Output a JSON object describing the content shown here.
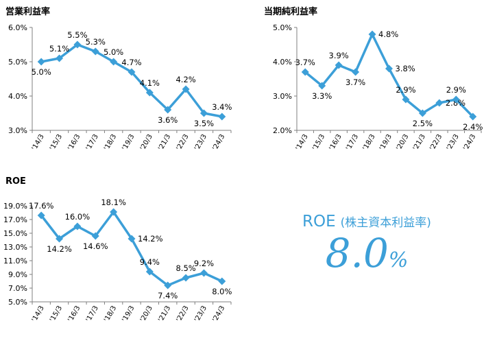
{
  "chart_data": [
    {
      "type": "line",
      "title": "営業利益率",
      "categories": [
        "'14/3",
        "'15/3",
        "'16/3",
        "'17/3",
        "'18/3",
        "'19/3",
        "'20/3",
        "'21/3",
        "'22/3",
        "'23/3",
        "'24/3"
      ],
      "values": [
        5.0,
        5.1,
        5.5,
        5.3,
        5.0,
        4.7,
        4.1,
        3.6,
        4.2,
        3.5,
        3.4
      ],
      "data_labels": [
        "5.0%",
        "5.1%",
        "5.5%",
        "5.3%",
        "5.0%",
        "4.7%",
        "4.1%",
        "3.6%",
        "4.2%",
        "3.5%",
        "3.4%"
      ],
      "label_pos": [
        "below",
        "above",
        "above",
        "above",
        "above",
        "above",
        "above",
        "below",
        "above",
        "below",
        "above"
      ],
      "ylim": [
        3.0,
        6.0
      ],
      "yticks": [
        3.0,
        4.0,
        5.0,
        6.0
      ],
      "ytick_labels": [
        "3.0%",
        "4.0%",
        "5.0%",
        "6.0%"
      ],
      "xlabel": "",
      "ylabel": "",
      "grid": false,
      "color": "#3c9fd8"
    },
    {
      "type": "line",
      "title": "当期純利益率",
      "categories": [
        "'14/3",
        "'15/3",
        "'16/3",
        "'17/3",
        "'18/3",
        "'19/3",
        "'20/3",
        "'21/3",
        "'22/3",
        "'23/3",
        "'24/3"
      ],
      "values": [
        3.7,
        3.3,
        3.9,
        3.7,
        4.8,
        3.8,
        2.9,
        2.5,
        2.8,
        2.9,
        2.4
      ],
      "data_labels": [
        "3.7%",
        "3.3%",
        "3.9%",
        "3.7%",
        "4.8%",
        "3.8%",
        "2.9%",
        "2.5%",
        "2.8%",
        "2.9%",
        "2.4%"
      ],
      "label_pos": [
        "above",
        "below",
        "above",
        "below",
        "right",
        "right",
        "above",
        "below",
        "right",
        "above",
        "below"
      ],
      "ylim": [
        2.0,
        5.0
      ],
      "yticks": [
        2.0,
        3.0,
        4.0,
        5.0
      ],
      "ytick_labels": [
        "2.0%",
        "3.0%",
        "4.0%",
        "5.0%"
      ],
      "xlabel": "",
      "ylabel": "",
      "grid": false,
      "color": "#3c9fd8"
    },
    {
      "type": "line",
      "title": "ROE",
      "categories": [
        "'14/3",
        "'15/3",
        "'16/3",
        "'17/3",
        "'18/3",
        "'19/3",
        "'20/3",
        "'21/3",
        "'22/3",
        "'23/3",
        "'24/3"
      ],
      "values": [
        17.6,
        14.2,
        16.0,
        14.6,
        18.1,
        14.2,
        9.4,
        7.4,
        8.5,
        9.2,
        8.0
      ],
      "data_labels": [
        "17.6%",
        "14.2%",
        "16.0%",
        "14.6%",
        "18.1%",
        "14.2%",
        "9.4%",
        "7.4%",
        "8.5%",
        "9.2%",
        "8.0%"
      ],
      "label_pos": [
        "above",
        "below",
        "above",
        "below",
        "above",
        "right",
        "above",
        "below",
        "above",
        "above",
        "below"
      ],
      "ylim": [
        5.0,
        19.0
      ],
      "yticks": [
        5.0,
        7.0,
        9.0,
        11.0,
        13.0,
        15.0,
        17.0,
        19.0
      ],
      "ytick_labels": [
        "5.0%",
        "7.0%",
        "9.0%",
        "11.0%",
        "13.0%",
        "15.0%",
        "17.0%",
        "19.0%"
      ],
      "xlabel": "",
      "ylabel": "",
      "grid": false,
      "color": "#3c9fd8"
    }
  ],
  "kpi": {
    "label": "ROE",
    "sublabel": "(株主資本利益率)",
    "value": "8.0",
    "unit": "%",
    "color": "#3c9fd8"
  }
}
